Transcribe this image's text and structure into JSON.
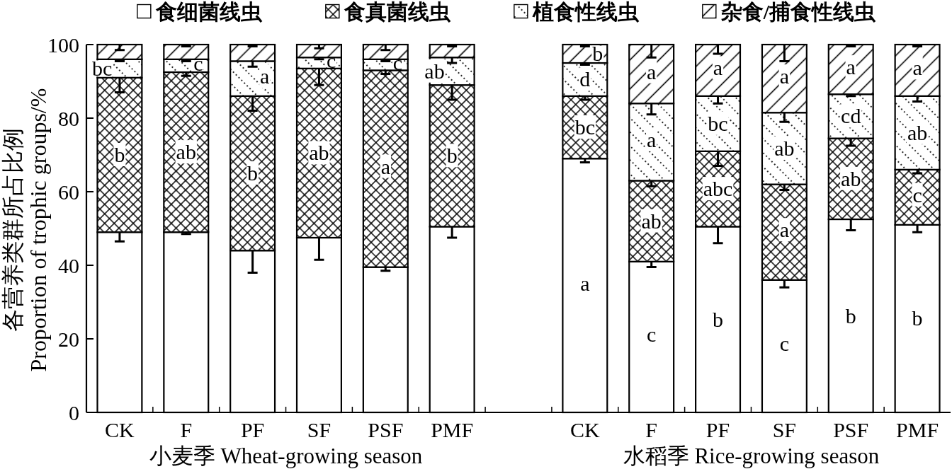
{
  "chart_data": {
    "type": "bar",
    "stacked": true,
    "ylabel": "各营养类群所占比例\nProportion of trophic groups/%",
    "legend": "top",
    "ylim": [
      0,
      100
    ],
    "yticks": [
      0,
      20,
      40,
      60,
      80,
      100
    ],
    "categories": [
      "CK",
      "F",
      "PF",
      "SF",
      "PSF",
      "PMF",
      null,
      "CK",
      "F",
      "PF",
      "SF",
      "PSF",
      "PMF"
    ],
    "annotations": [
      "小麦季 Wheat-growing season",
      "水稻季 Rice-growing season"
    ],
    "series": [
      {
        "name": "食细菌线虫",
        "color": "#ffffff",
        "values": [
          49,
          49,
          44,
          47.5,
          39.5,
          50.5,
          null,
          69,
          41,
          50.5,
          36,
          52.5,
          51
        ],
        "errors": [
          [
            46.5,
            49
          ],
          [
            48.5,
            49
          ],
          [
            38,
            44
          ],
          [
            41.5,
            47.5
          ],
          [
            38.5,
            39.5
          ],
          [
            47.5,
            50.5
          ],
          null,
          [
            68,
            69
          ],
          [
            39.5,
            41
          ],
          [
            46,
            50.5
          ],
          [
            34,
            36
          ],
          [
            49.5,
            52.5
          ],
          [
            49,
            51
          ]
        ],
        "value_labels": [
          null,
          null,
          null,
          null,
          null,
          null,
          null,
          "a",
          "c",
          "b",
          "c",
          "b",
          "b"
        ]
      },
      {
        "name": "食真菌线虫",
        "color": "#000000",
        "values": [
          42,
          43.5,
          42,
          46,
          53.5,
          38.5,
          null,
          17,
          22,
          20.5,
          26,
          22,
          15
        ],
        "errors": [
          [
            87,
            91
          ],
          [
            91.5,
            92.5
          ],
          [
            82,
            86
          ],
          [
            89,
            93.5
          ],
          [
            92,
            93
          ],
          [
            85,
            89
          ],
          null,
          [
            85,
            86
          ],
          [
            61.5,
            63
          ],
          [
            67,
            71
          ],
          [
            60.5,
            62
          ],
          [
            72.5,
            74.5
          ],
          [
            65,
            66
          ]
        ],
        "value_labels": [
          "b",
          "ab",
          "b",
          "ab",
          "a",
          "b",
          null,
          "bc",
          "ab",
          "abc",
          "a",
          "ab",
          "c"
        ]
      },
      {
        "name": "植食性线虫",
        "color": "#000000",
        "values": [
          5,
          3.5,
          9.5,
          3,
          3,
          7.5,
          null,
          9,
          21,
          15,
          19.5,
          12,
          20
        ],
        "errors": [
          [
            95.5,
            96
          ],
          [
            95.5,
            96
          ],
          [
            94,
            95.5
          ],
          [
            96,
            96.5
          ],
          [
            95.5,
            96
          ],
          [
            95,
            96.5
          ],
          null,
          [
            94.5,
            95
          ],
          [
            81,
            84
          ],
          [
            84,
            86
          ],
          [
            79,
            81.5
          ],
          [
            86,
            86.5
          ],
          [
            84.5,
            86
          ]
        ],
        "value_labels": [
          "bc",
          "c",
          "a",
          "c",
          "c",
          "ab",
          null,
          "d",
          "a",
          "bc",
          "ab",
          "cd",
          "ab"
        ]
      },
      {
        "name": "杂食/捕食性线虫",
        "color": "#000000",
        "values": [
          4,
          4,
          4.5,
          3.5,
          4,
          3.5,
          null,
          5,
          16,
          14,
          18.5,
          13.5,
          14
        ],
        "errors": [
          [
            98.5,
            100
          ],
          [
            99.5,
            100
          ],
          [
            99.5,
            100
          ],
          [
            99,
            100
          ],
          [
            98.5,
            100
          ],
          [
            99.5,
            100
          ],
          null,
          [
            99.5,
            100
          ],
          [
            96.5,
            100
          ],
          [
            97.5,
            100
          ],
          [
            95.5,
            100
          ],
          [
            99.5,
            100
          ],
          [
            99.5,
            100
          ]
        ],
        "value_labels": [
          null,
          null,
          null,
          null,
          null,
          null,
          null,
          "b",
          "a",
          "a",
          "a",
          "a",
          "a"
        ]
      }
    ]
  }
}
